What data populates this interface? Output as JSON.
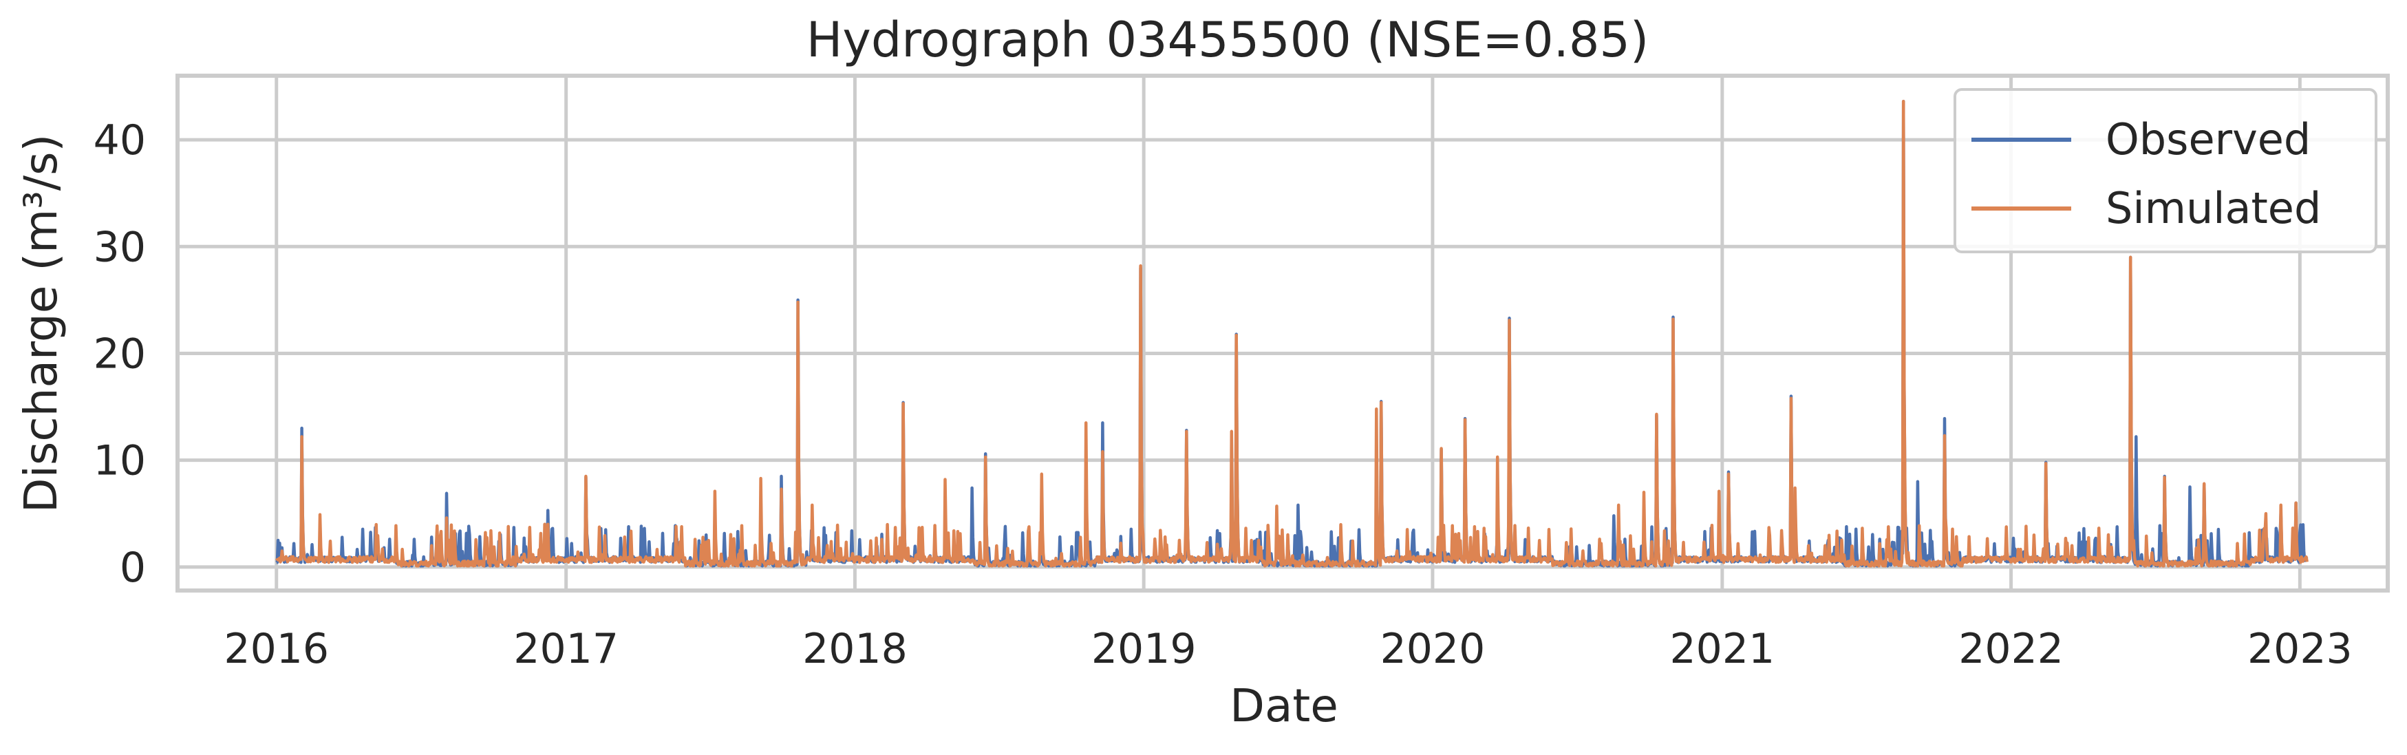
{
  "chart_data": {
    "type": "line",
    "title": "Hydrograph 03455500  (NSE=0.85)",
    "xlabel": "Date",
    "ylabel": "Discharge (m³/s)",
    "xlim": [
      "2015-08-29",
      "2023-04-22"
    ],
    "ylim": [
      -2.2,
      46
    ],
    "grid": true,
    "legend_position": "top-right",
    "x_ticks": [
      "2016",
      "2017",
      "2018",
      "2019",
      "2020",
      "2021",
      "2022",
      "2023"
    ],
    "y_ticks": [
      0,
      10,
      20,
      30,
      40
    ],
    "series": [
      {
        "name": "Observed",
        "color": "#4c72b0",
        "peaks": [
          [
            "2016-01-08",
            1.8
          ],
          [
            "2016-02-02",
            13.0
          ],
          [
            "2016-07-15",
            2.8
          ],
          [
            "2016-08-03",
            6.9
          ],
          [
            "2016-12-09",
            5.3
          ],
          [
            "2017-01-26",
            8.4
          ],
          [
            "2017-09-30",
            8.5
          ],
          [
            "2017-10-21",
            25.0
          ],
          [
            "2018-03-03",
            15.4
          ],
          [
            "2018-05-29",
            7.4
          ],
          [
            "2018-06-15",
            10.6
          ],
          [
            "2018-07-10",
            3.8
          ],
          [
            "2018-11-10",
            13.5
          ],
          [
            "2018-12-28",
            28.0
          ],
          [
            "2019-02-24",
            12.8
          ],
          [
            "2019-04-28",
            21.8
          ],
          [
            "2019-07-15",
            5.8
          ],
          [
            "2019-08-26",
            3.3
          ],
          [
            "2019-10-28",
            15.5
          ],
          [
            "2020-01-12",
            11.0
          ],
          [
            "2020-02-11",
            13.9
          ],
          [
            "2020-04-07",
            23.3
          ],
          [
            "2020-06-22",
            1.9
          ],
          [
            "2020-08-17",
            4.8
          ],
          [
            "2020-10-10",
            14.2
          ],
          [
            "2020-10-31",
            23.4
          ],
          [
            "2021-01-09",
            8.9
          ],
          [
            "2021-03-29",
            16.0
          ],
          [
            "2021-07-19",
            2.6
          ],
          [
            "2021-08-18",
            43.6
          ],
          [
            "2021-09-05",
            8.0
          ],
          [
            "2021-10-09",
            13.9
          ],
          [
            "2022-01-04",
            2.7
          ],
          [
            "2022-02-14",
            9.8
          ],
          [
            "2022-04-03",
            3.6
          ],
          [
            "2022-06-01",
            29.0
          ],
          [
            "2022-06-08",
            12.2
          ],
          [
            "2022-07-14",
            8.5
          ],
          [
            "2022-08-15",
            7.5
          ],
          [
            "2022-09-02",
            7.7
          ],
          [
            "2022-12-08",
            5.0
          ],
          [
            "2022-12-27",
            6.0
          ]
        ]
      },
      {
        "name": "Simulated",
        "color": "#dd8452",
        "peaks": [
          [
            "2016-01-08",
            1.5
          ],
          [
            "2016-02-02",
            12.2
          ],
          [
            "2016-02-25",
            4.9
          ],
          [
            "2016-07-15",
            2.0
          ],
          [
            "2016-08-03",
            4.6
          ],
          [
            "2016-09-28",
            3.4
          ],
          [
            "2016-12-09",
            4.0
          ],
          [
            "2017-01-26",
            8.5
          ],
          [
            "2017-05-20",
            3.8
          ],
          [
            "2017-07-08",
            7.1
          ],
          [
            "2017-09-04",
            8.3
          ],
          [
            "2017-09-30",
            7.3
          ],
          [
            "2017-10-21",
            24.8
          ],
          [
            "2017-11-08",
            5.8
          ],
          [
            "2018-03-03",
            15.3
          ],
          [
            "2018-04-25",
            8.2
          ],
          [
            "2018-06-15",
            10.3
          ],
          [
            "2018-08-25",
            8.7
          ],
          [
            "2018-10-20",
            13.5
          ],
          [
            "2018-11-10",
            10.8
          ],
          [
            "2018-12-28",
            28.2
          ],
          [
            "2019-02-24",
            12.7
          ],
          [
            "2019-04-22",
            12.7
          ],
          [
            "2019-04-28",
            21.7
          ],
          [
            "2019-06-18",
            5.7
          ],
          [
            "2019-10-22",
            14.8
          ],
          [
            "2019-10-28",
            15.4
          ],
          [
            "2020-01-12",
            11.1
          ],
          [
            "2020-02-11",
            13.8
          ],
          [
            "2020-03-23",
            10.3
          ],
          [
            "2020-04-07",
            23.1
          ],
          [
            "2020-08-23",
            5.8
          ],
          [
            "2020-09-24",
            7.0
          ],
          [
            "2020-10-10",
            14.3
          ],
          [
            "2020-10-31",
            23.2
          ],
          [
            "2020-12-28",
            7.1
          ],
          [
            "2021-01-09",
            8.7
          ],
          [
            "2021-03-29",
            15.8
          ],
          [
            "2021-04-03",
            7.4
          ],
          [
            "2021-08-18",
            43.6
          ],
          [
            "2021-10-09",
            12.3
          ],
          [
            "2022-02-14",
            9.7
          ],
          [
            "2022-06-01",
            29.0
          ],
          [
            "2022-07-14",
            8.4
          ],
          [
            "2022-09-02",
            7.8
          ],
          [
            "2022-11-19",
            5.0
          ],
          [
            "2022-12-08",
            5.8
          ],
          [
            "2022-12-27",
            6.0
          ]
        ]
      }
    ]
  }
}
